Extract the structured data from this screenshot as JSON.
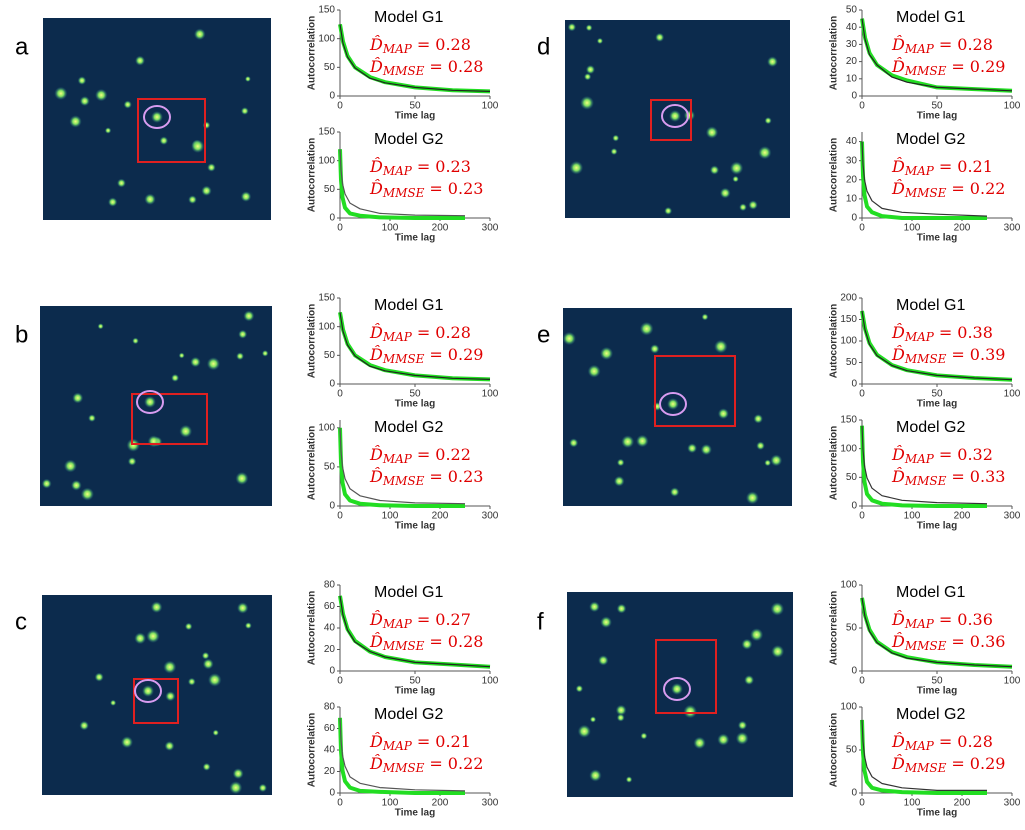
{
  "panel_labels": [
    "a",
    "b",
    "c",
    "d",
    "e",
    "f"
  ],
  "chart_data": [
    {
      "type": "line",
      "title": "Model G1",
      "ylabel": "Autocorrelation",
      "xlabel": "Time lag",
      "xlim": [
        0,
        100
      ],
      "xticks": [
        0,
        50,
        100
      ],
      "ylim": [
        0,
        150
      ],
      "yticks": [
        0,
        50,
        100,
        150
      ],
      "x": [
        0,
        2,
        5,
        10,
        20,
        30,
        50,
        75,
        100
      ],
      "series": [
        {
          "color": "#22dd22",
          "values": [
            125,
            95,
            70,
            50,
            33,
            24,
            15,
            10,
            8
          ]
        },
        {
          "color": "#222222",
          "values": [
            125,
            92,
            68,
            49,
            31,
            23,
            15,
            10,
            8
          ]
        }
      ],
      "estimates": [
        {
          "symbol": "D̂",
          "subscript": "MAP",
          "relation": "=",
          "value": 0.28
        },
        {
          "symbol": "D̂",
          "subscript": "MMSE",
          "relation": "=",
          "value": 0.28
        }
      ]
    },
    {
      "type": "line",
      "title": "Model G2",
      "ylabel": "Autocorrelation",
      "xlabel": "Time lag",
      "xlim": [
        0,
        300
      ],
      "xticks": [
        0,
        100,
        200,
        300
      ],
      "ylim": [
        0,
        150
      ],
      "yticks": [
        0,
        50,
        100,
        150
      ],
      "x": [
        0,
        2,
        5,
        10,
        20,
        40,
        80,
        150,
        250
      ],
      "series": [
        {
          "color": "#22dd22",
          "values": [
            120,
            66,
            36,
            18,
            8,
            4,
            1,
            0,
            0
          ]
        },
        {
          "color": "#555555",
          "values": [
            120,
            84,
            60,
            42,
            26,
            16,
            8,
            5,
            4
          ]
        }
      ],
      "estimates": [
        {
          "symbol": "D̂",
          "subscript": "MAP",
          "relation": "=",
          "value": 0.23
        },
        {
          "symbol": "D̂",
          "subscript": "MMSE",
          "relation": "=",
          "value": 0.23
        }
      ]
    },
    {
      "type": "line",
      "title": "Model G1",
      "ylabel": "Autocorrelation",
      "xlabel": "Time lag",
      "xlim": [
        0,
        100
      ],
      "xticks": [
        0,
        50,
        100
      ],
      "ylim": [
        0,
        150
      ],
      "yticks": [
        0,
        50,
        100,
        150
      ],
      "x": [
        0,
        2,
        5,
        10,
        20,
        30,
        50,
        75,
        100
      ],
      "series": [
        {
          "color": "#22dd22",
          "values": [
            125,
            95,
            70,
            50,
            33,
            24,
            15,
            10,
            8
          ]
        },
        {
          "color": "#222222",
          "values": [
            125,
            92,
            68,
            49,
            31,
            23,
            15,
            10,
            8
          ]
        }
      ],
      "estimates": [
        {
          "symbol": "D̂",
          "subscript": "MAP",
          "relation": "=",
          "value": 0.28
        },
        {
          "symbol": "D̂",
          "subscript": "MMSE",
          "relation": "=",
          "value": 0.29
        }
      ]
    },
    {
      "type": "line",
      "title": "Model G2",
      "ylabel": "Autocorrelation",
      "xlabel": "Time lag",
      "xlim": [
        0,
        300
      ],
      "xticks": [
        0,
        100,
        200,
        300
      ],
      "ylim": [
        0,
        110
      ],
      "yticks": [
        0,
        50,
        100
      ],
      "x": [
        0,
        2,
        5,
        10,
        20,
        40,
        80,
        150,
        250
      ],
      "series": [
        {
          "color": "#22dd22",
          "values": [
            100,
            55,
            30,
            15,
            7,
            3,
            1,
            0,
            0
          ]
        },
        {
          "color": "#555555",
          "values": [
            100,
            70,
            50,
            35,
            22,
            13,
            7,
            4,
            3
          ]
        }
      ],
      "estimates": [
        {
          "symbol": "D̂",
          "subscript": "MAP",
          "relation": "=",
          "value": 0.22
        },
        {
          "symbol": "D̂",
          "subscript": "MMSE",
          "relation": "=",
          "value": 0.23
        }
      ]
    },
    {
      "type": "line",
      "title": "Model G1",
      "ylabel": "Autocorrelation",
      "xlabel": "Time lag",
      "xlim": [
        0,
        100
      ],
      "xticks": [
        0,
        50,
        100
      ],
      "ylim": [
        0,
        80
      ],
      "yticks": [
        0,
        20,
        40,
        60,
        80
      ],
      "x": [
        0,
        2,
        5,
        10,
        20,
        30,
        50,
        75,
        100
      ],
      "series": [
        {
          "color": "#22dd22",
          "values": [
            70,
            53,
            39,
            28,
            18,
            13,
            8,
            6,
            4
          ]
        },
        {
          "color": "#222222",
          "values": [
            70,
            52,
            38,
            27,
            18,
            13,
            8,
            6,
            4
          ]
        }
      ],
      "estimates": [
        {
          "symbol": "D̂",
          "subscript": "MAP",
          "relation": "=",
          "value": 0.27
        },
        {
          "symbol": "D̂",
          "subscript": "MMSE",
          "relation": "=",
          "value": 0.28
        }
      ]
    },
    {
      "type": "line",
      "title": "Model G2",
      "ylabel": "Autocorrelation",
      "xlabel": "Time lag",
      "xlim": [
        0,
        300
      ],
      "xticks": [
        0,
        100,
        200,
        300
      ],
      "ylim": [
        0,
        80
      ],
      "yticks": [
        0,
        20,
        40,
        60,
        80
      ],
      "x": [
        0,
        2,
        5,
        10,
        20,
        40,
        80,
        150,
        250
      ],
      "series": [
        {
          "color": "#22dd22",
          "values": [
            70,
            39,
            21,
            11,
            5,
            2,
            1,
            0,
            0
          ]
        },
        {
          "color": "#555555",
          "values": [
            70,
            49,
            35,
            25,
            15,
            9,
            5,
            3,
            2
          ]
        }
      ],
      "estimates": [
        {
          "symbol": "D̂",
          "subscript": "MAP",
          "relation": "=",
          "value": 0.21
        },
        {
          "symbol": "D̂",
          "subscript": "MMSE",
          "relation": "=",
          "value": 0.22
        }
      ]
    },
    {
      "type": "line",
      "title": "Model G1",
      "ylabel": "Autocorrelation",
      "xlabel": "Time lag",
      "xlim": [
        0,
        100
      ],
      "xticks": [
        0,
        50,
        100
      ],
      "ylim": [
        0,
        50
      ],
      "yticks": [
        0,
        10,
        20,
        30,
        40,
        50
      ],
      "x": [
        0,
        2,
        5,
        10,
        20,
        30,
        50,
        75,
        100
      ],
      "series": [
        {
          "color": "#22dd22",
          "values": [
            45,
            34,
            25,
            18,
            12,
            9,
            5,
            4,
            3
          ]
        },
        {
          "color": "#222222",
          "values": [
            45,
            33,
            24,
            18,
            11,
            8,
            5,
            4,
            3
          ]
        }
      ],
      "estimates": [
        {
          "symbol": "D̂",
          "subscript": "MAP",
          "relation": "=",
          "value": 0.28
        },
        {
          "symbol": "D̂",
          "subscript": "MMSE",
          "relation": "=",
          "value": 0.29
        }
      ]
    },
    {
      "type": "line",
      "title": "Model G2",
      "ylabel": "Autocorrelation",
      "xlabel": "Time lag",
      "xlim": [
        0,
        300
      ],
      "xticks": [
        0,
        100,
        200,
        300
      ],
      "ylim": [
        0,
        45
      ],
      "yticks": [
        0,
        10,
        20,
        30,
        40
      ],
      "x": [
        0,
        2,
        5,
        10,
        20,
        40,
        80,
        150,
        250
      ],
      "series": [
        {
          "color": "#22dd22",
          "values": [
            40,
            22,
            12,
            6,
            3,
            1,
            0,
            0,
            0
          ]
        },
        {
          "color": "#333333",
          "values": [
            40,
            28,
            20,
            14,
            9,
            5,
            3,
            2,
            1
          ]
        }
      ],
      "estimates": [
        {
          "symbol": "D̂",
          "subscript": "MAP",
          "relation": "=",
          "value": 0.21
        },
        {
          "symbol": "D̂",
          "subscript": "MMSE",
          "relation": "=",
          "value": 0.22
        }
      ]
    },
    {
      "type": "line",
      "title": "Model G1",
      "ylabel": "Autocorrelation",
      "xlabel": "Time lag",
      "xlim": [
        0,
        100
      ],
      "xticks": [
        0,
        50,
        100
      ],
      "ylim": [
        0,
        200
      ],
      "yticks": [
        0,
        50,
        100,
        150,
        200
      ],
      "x": [
        0,
        2,
        5,
        10,
        20,
        30,
        50,
        75,
        100
      ],
      "series": [
        {
          "color": "#22dd22",
          "values": [
            170,
            129,
            95,
            68,
            44,
            32,
            20,
            14,
            10
          ]
        },
        {
          "color": "#222222",
          "values": [
            170,
            126,
            92,
            66,
            43,
            31,
            20,
            14,
            10
          ]
        }
      ],
      "estimates": [
        {
          "symbol": "D̂",
          "subscript": "MAP",
          "relation": "=",
          "value": 0.38
        },
        {
          "symbol": "D̂",
          "subscript": "MMSE",
          "relation": "=",
          "value": 0.39
        }
      ]
    },
    {
      "type": "line",
      "title": "Model G2",
      "ylabel": "Autocorrelation",
      "xlabel": "Time lag",
      "xlim": [
        0,
        300
      ],
      "xticks": [
        0,
        100,
        200,
        300
      ],
      "ylim": [
        0,
        150
      ],
      "yticks": [
        0,
        50,
        100,
        150
      ],
      "x": [
        0,
        2,
        5,
        10,
        20,
        40,
        80,
        150,
        250
      ],
      "series": [
        {
          "color": "#22dd22",
          "values": [
            140,
            77,
            42,
            21,
            10,
            4,
            1,
            0,
            0
          ]
        },
        {
          "color": "#333333",
          "values": [
            140,
            98,
            70,
            49,
            31,
            18,
            10,
            6,
            4
          ]
        }
      ],
      "estimates": [
        {
          "symbol": "D̂",
          "subscript": "MAP",
          "relation": "=",
          "value": 0.32
        },
        {
          "symbol": "D̂",
          "subscript": "MMSE",
          "relation": "=",
          "value": 0.33
        }
      ]
    },
    {
      "type": "line",
      "title": "Model G1",
      "ylabel": "Autocorrelation",
      "xlabel": "Time lag",
      "xlim": [
        0,
        100
      ],
      "xticks": [
        0,
        50,
        100
      ],
      "ylim": [
        0,
        100
      ],
      "yticks": [
        0,
        50,
        100
      ],
      "x": [
        0,
        2,
        5,
        10,
        20,
        30,
        50,
        75,
        100
      ],
      "series": [
        {
          "color": "#22dd22",
          "values": [
            85,
            65,
            48,
            34,
            22,
            16,
            10,
            7,
            5
          ]
        },
        {
          "color": "#222222",
          "values": [
            85,
            63,
            46,
            33,
            21,
            15,
            10,
            7,
            5
          ]
        }
      ],
      "estimates": [
        {
          "symbol": "D̂",
          "subscript": "MAP",
          "relation": "=",
          "value": 0.36
        },
        {
          "symbol": "D̂",
          "subscript": "MMSE",
          "relation": "=",
          "value": 0.36
        }
      ]
    },
    {
      "type": "line",
      "title": "Model G2",
      "ylabel": "Autocorrelation",
      "xlabel": "Time lag",
      "xlim": [
        0,
        300
      ],
      "xticks": [
        0,
        100,
        200,
        300
      ],
      "ylim": [
        0,
        100
      ],
      "yticks": [
        0,
        50,
        100
      ],
      "x": [
        0,
        2,
        5,
        10,
        20,
        40,
        80,
        150,
        250
      ],
      "series": [
        {
          "color": "#22dd22",
          "values": [
            85,
            47,
            26,
            13,
            6,
            3,
            1,
            0,
            0
          ]
        },
        {
          "color": "#333333",
          "values": [
            85,
            60,
            43,
            30,
            19,
            11,
            6,
            3,
            3
          ]
        }
      ],
      "estimates": [
        {
          "symbol": "D̂",
          "subscript": "MAP",
          "relation": "=",
          "value": 0.28
        },
        {
          "symbol": "D̂",
          "subscript": "MMSE",
          "relation": "=",
          "value": 0.29
        }
      ]
    }
  ]
}
